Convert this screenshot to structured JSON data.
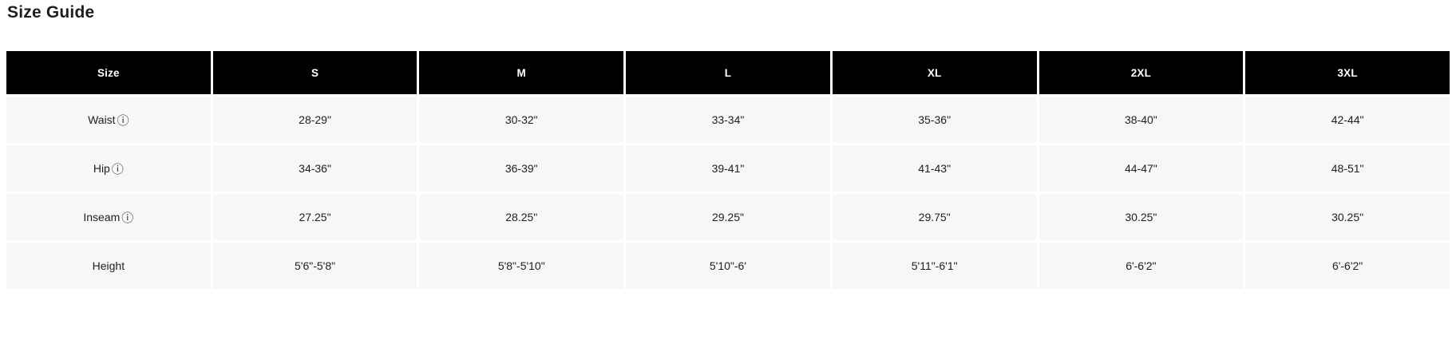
{
  "page": {
    "title": "Size Guide"
  },
  "icons": {
    "info_glyph": "ⓘ"
  },
  "colors": {
    "header_bg": "#000000",
    "header_text": "#ffffff",
    "row_bg": "#f7f7f7",
    "cell_text": "#212121",
    "gap": "#ffffff"
  },
  "table": {
    "columns": [
      "Size",
      "S",
      "M",
      "L",
      "XL",
      "2XL",
      "3XL"
    ],
    "rows": [
      {
        "label": "Waist",
        "has_info": true,
        "values": [
          "28-29\"",
          "30-32\"",
          "33-34\"",
          "35-36\"",
          "38-40\"",
          "42-44\""
        ]
      },
      {
        "label": "Hip",
        "has_info": true,
        "values": [
          "34-36\"",
          "36-39\"",
          "39-41\"",
          "41-43\"",
          "44-47\"",
          "48-51\""
        ]
      },
      {
        "label": "Inseam",
        "has_info": true,
        "values": [
          "27.25\"",
          "28.25\"",
          "29.25\"",
          "29.75\"",
          "30.25\"",
          "30.25\""
        ]
      },
      {
        "label": "Height",
        "has_info": false,
        "values": [
          "5'6\"-5'8\"",
          "5'8\"-5'10\"",
          "5'10\"-6'",
          "5'11\"-6'1\"",
          "6'-6'2\"",
          "6'-6'2\""
        ]
      }
    ]
  }
}
